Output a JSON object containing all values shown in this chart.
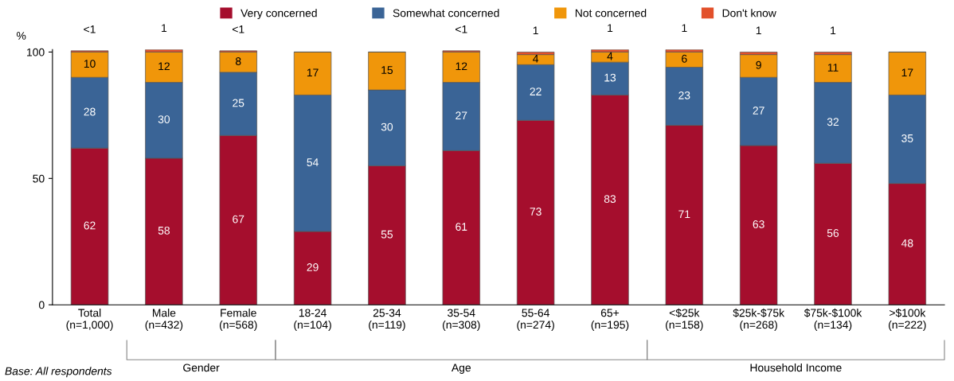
{
  "chart_data": {
    "type": "bar",
    "stacked": true,
    "ylabel": "%",
    "categories": [
      "Total\n(n=1,000)",
      "Male\n(n=432)",
      "Female\n(n=568)",
      "18-24\n(n=104)",
      "25-34\n(n=119)",
      "35-54\n(n=308)",
      "55-64\n(n=274)",
      "65+\n(n=195)",
      "<$25k\n(n=158)",
      "$25k-$75k\n(n=268)",
      "$75k-$100k\n(n=134)",
      ">$100k\n(n=222)"
    ],
    "series": [
      {
        "name": "Very concerned",
        "color": "#a50e2d",
        "values": [
          62,
          58,
          67,
          29,
          55,
          61,
          73,
          83,
          71,
          63,
          56,
          48
        ],
        "value_labels": [
          "62",
          "58",
          "67",
          "29",
          "55",
          "61",
          "73",
          "83",
          "71",
          "63",
          "56",
          "48"
        ]
      },
      {
        "name": "Somewhat concerned",
        "color": "#3a6496",
        "values": [
          28,
          30,
          25,
          54,
          30,
          27,
          22,
          13,
          23,
          27,
          32,
          35
        ],
        "value_labels": [
          "28",
          "30",
          "25",
          "54",
          "30",
          "27",
          "22",
          "13",
          "23",
          "27",
          "32",
          "35"
        ]
      },
      {
        "name": "Not concerned",
        "color": "#f0960a",
        "values": [
          10,
          12,
          8,
          17,
          15,
          12,
          4,
          4,
          6,
          9,
          11,
          17
        ],
        "value_labels": [
          "10",
          "12",
          "8",
          "17",
          "15",
          "12",
          "4",
          "4",
          "6",
          "9",
          "11",
          "17"
        ]
      },
      {
        "name": "Don't know",
        "color": "#e2502a",
        "values": [
          0.5,
          1,
          0.5,
          null,
          null,
          0.5,
          1,
          1,
          1,
          1,
          1,
          null
        ],
        "value_labels": [
          "<1",
          "1",
          "<1",
          null,
          null,
          "<1",
          "1",
          "1",
          "1",
          "1",
          "1",
          null
        ]
      }
    ],
    "ylim": [
      0,
      101
    ],
    "yticks": [
      0,
      50,
      100
    ],
    "grid": false,
    "legend": "top",
    "annotations": [
      "Gender",
      "Age",
      "Household Income",
      "Base: All respondents"
    ]
  }
}
